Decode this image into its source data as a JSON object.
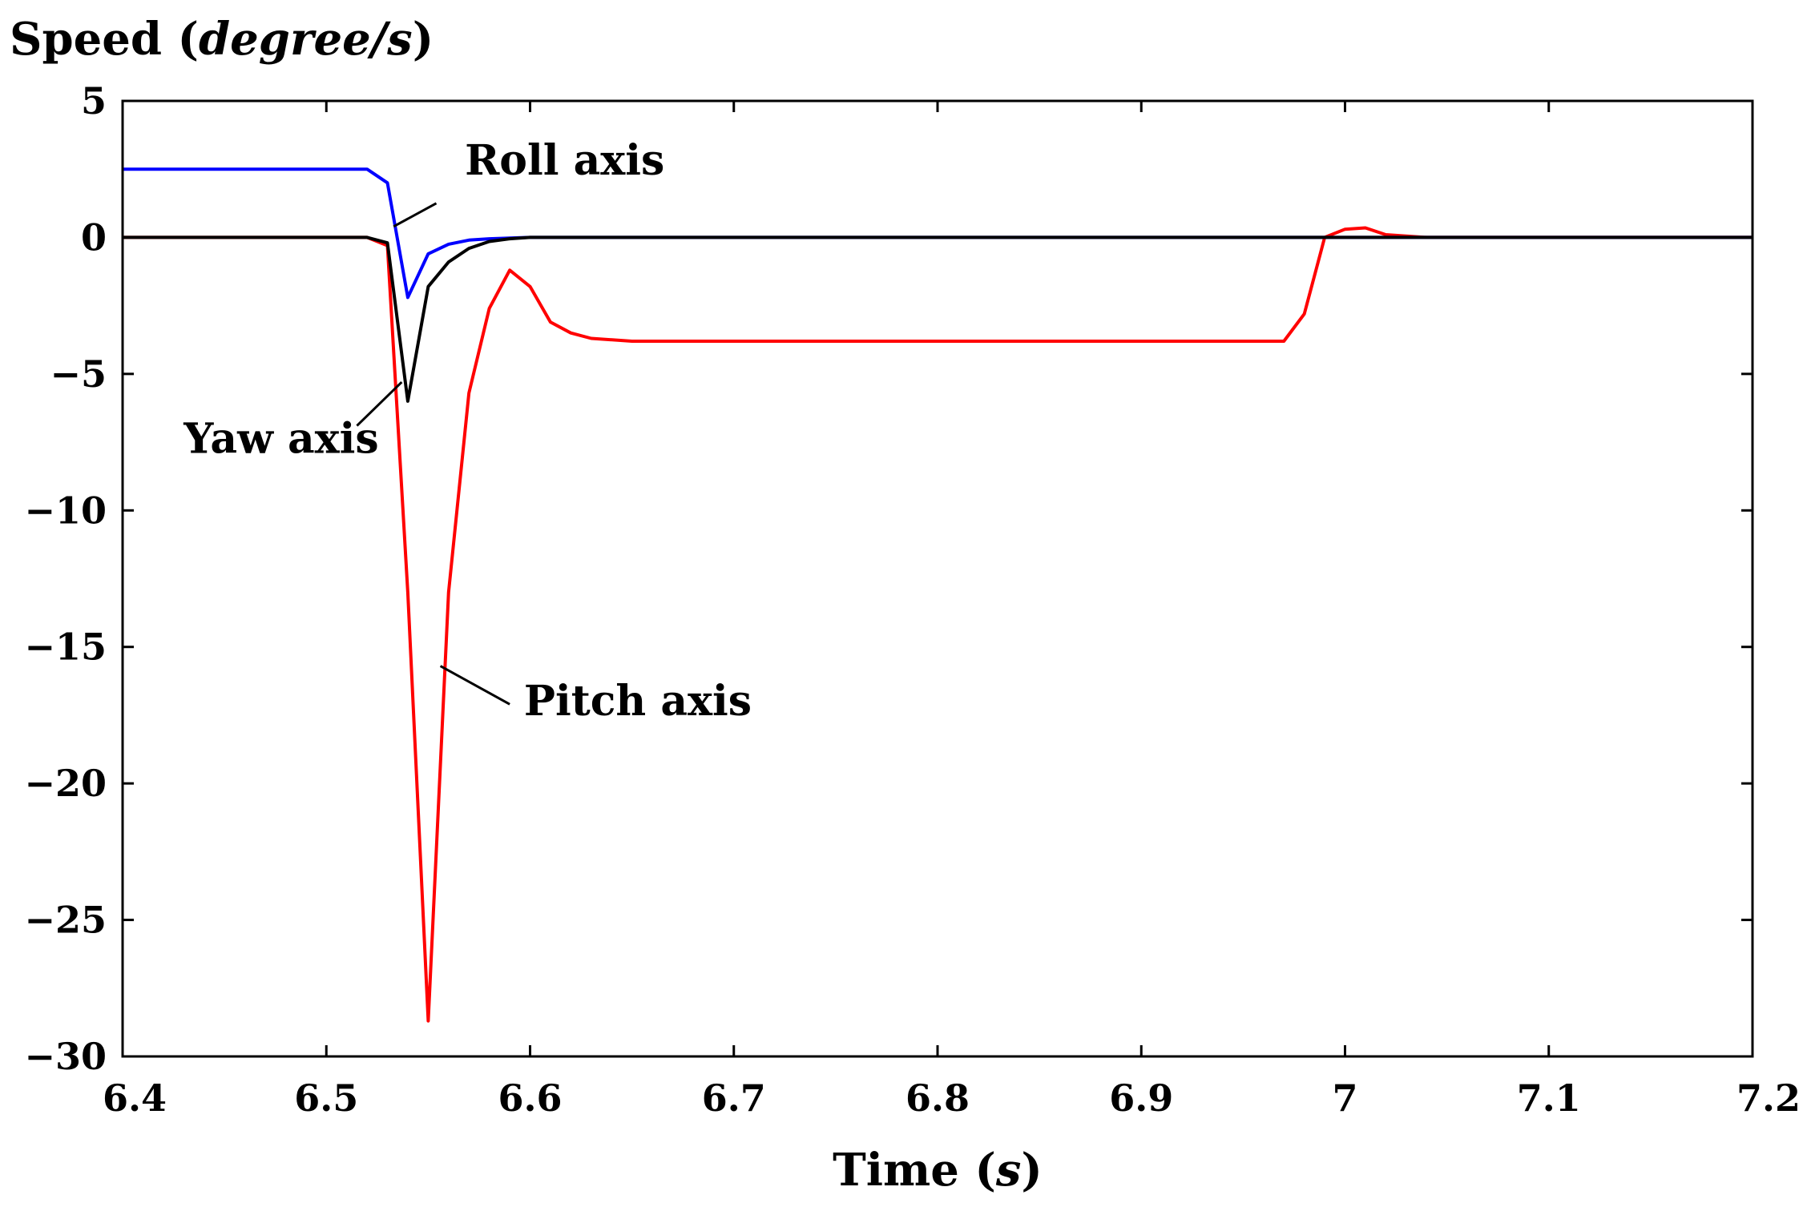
{
  "chart_data": {
    "type": "line",
    "title": "",
    "ylabel": "Speed (degree/s)",
    "ylabel_parts": [
      "Speed (",
      "degree/s",
      ")"
    ],
    "xlabel": "Time (s)",
    "xlabel_parts": [
      "Time (",
      "s",
      ")"
    ],
    "xlim": [
      6.4,
      7.2
    ],
    "ylim": [
      -30,
      5
    ],
    "xticks": [
      6.4,
      6.5,
      6.6,
      6.7,
      6.8,
      6.9,
      7.0,
      7.1,
      7.2
    ],
    "xtick_labels": [
      "6.4",
      "6.5",
      "6.6",
      "6.7",
      "6.8",
      "6.9",
      "7",
      "7.1",
      "7.2"
    ],
    "yticks": [
      5,
      0,
      -5,
      -10,
      -15,
      -20,
      -25,
      -30
    ],
    "ytick_labels": [
      "5",
      "0",
      "−5",
      "−10",
      "−15",
      "−20",
      "−25",
      "−30"
    ],
    "grid": false,
    "series": [
      {
        "name": "Roll axis",
        "color": "#0000ff",
        "x": [
          6.4,
          6.45,
          6.5,
          6.52,
          6.53,
          6.54,
          6.55,
          6.56,
          6.57,
          6.58,
          6.6,
          7.2
        ],
        "y": [
          2.5,
          2.5,
          2.5,
          2.5,
          2.0,
          -2.2,
          -0.6,
          -0.25,
          -0.1,
          -0.05,
          0.0,
          0.0
        ]
      },
      {
        "name": "Yaw axis",
        "color": "#000000",
        "x": [
          6.4,
          6.5,
          6.52,
          6.53,
          6.54,
          6.55,
          6.56,
          6.57,
          6.58,
          6.59,
          6.6,
          7.2
        ],
        "y": [
          0.0,
          0.0,
          0.0,
          -0.2,
          -6.0,
          -1.8,
          -0.9,
          -0.4,
          -0.15,
          -0.05,
          0.0,
          0.0
        ]
      },
      {
        "name": "Pitch axis",
        "color": "#ff0000",
        "x": [
          6.4,
          6.52,
          6.53,
          6.54,
          6.55,
          6.56,
          6.57,
          6.58,
          6.59,
          6.6,
          6.61,
          6.62,
          6.63,
          6.65,
          6.7,
          6.8,
          6.9,
          6.97,
          6.98,
          6.99,
          7.0,
          7.01,
          7.02,
          7.04,
          7.2
        ],
        "y": [
          0.0,
          0.0,
          -0.3,
          -13.0,
          -28.7,
          -13.0,
          -5.7,
          -2.6,
          -1.2,
          -1.8,
          -3.1,
          -3.5,
          -3.7,
          -3.8,
          -3.8,
          -3.8,
          -3.8,
          -3.8,
          -2.8,
          0.0,
          0.3,
          0.35,
          0.1,
          0.0,
          0.0
        ]
      }
    ],
    "annotations": [
      {
        "text": "Roll axis",
        "x": 6.568,
        "y": 2.3,
        "arrow_to": [
          6.533,
          0.4
        ]
      },
      {
        "text": "Yaw axis",
        "x": 6.43,
        "y": -7.9,
        "arrow_to": [
          6.537,
          -5.3
        ]
      },
      {
        "text": "Pitch axis",
        "x": 6.597,
        "y": -17.5,
        "arrow_to": [
          6.556,
          -15.7
        ]
      }
    ]
  }
}
